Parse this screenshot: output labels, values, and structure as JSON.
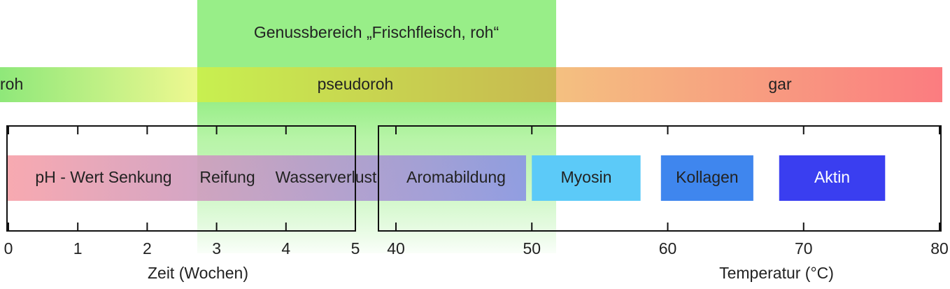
{
  "zone": {
    "title": "Genussbereich „Frischfleisch, roh“"
  },
  "band": {
    "labels": [
      "roh",
      "pseudoroh",
      "gar"
    ]
  },
  "time_axis": {
    "label": "Zeit (Wochen)",
    "lim": [
      0,
      5
    ],
    "ticks": [
      0,
      1,
      2,
      3,
      4,
      5
    ]
  },
  "temperature_axis": {
    "label": "Temperatur (°C)",
    "lim": [
      40,
      80
    ],
    "ticks": [
      40,
      50,
      60,
      70,
      80
    ]
  },
  "processes": [
    "pH - Wert Senkung",
    "Reifung",
    "Wasserverlust",
    "Aromabildung"
  ],
  "denaturation": [
    {
      "name": "Myosin",
      "range": [
        50,
        58
      ],
      "color": "#5ccaf8",
      "text_color": "#222222"
    },
    {
      "name": "Kollagen",
      "range": [
        59.5,
        66.3
      ],
      "color": "#3f86ee",
      "text_color": "#222222"
    },
    {
      "name": "Aktin",
      "range": [
        68.2,
        76
      ],
      "color": "#3a3ef0",
      "text_color": "#ffffff"
    }
  ]
}
